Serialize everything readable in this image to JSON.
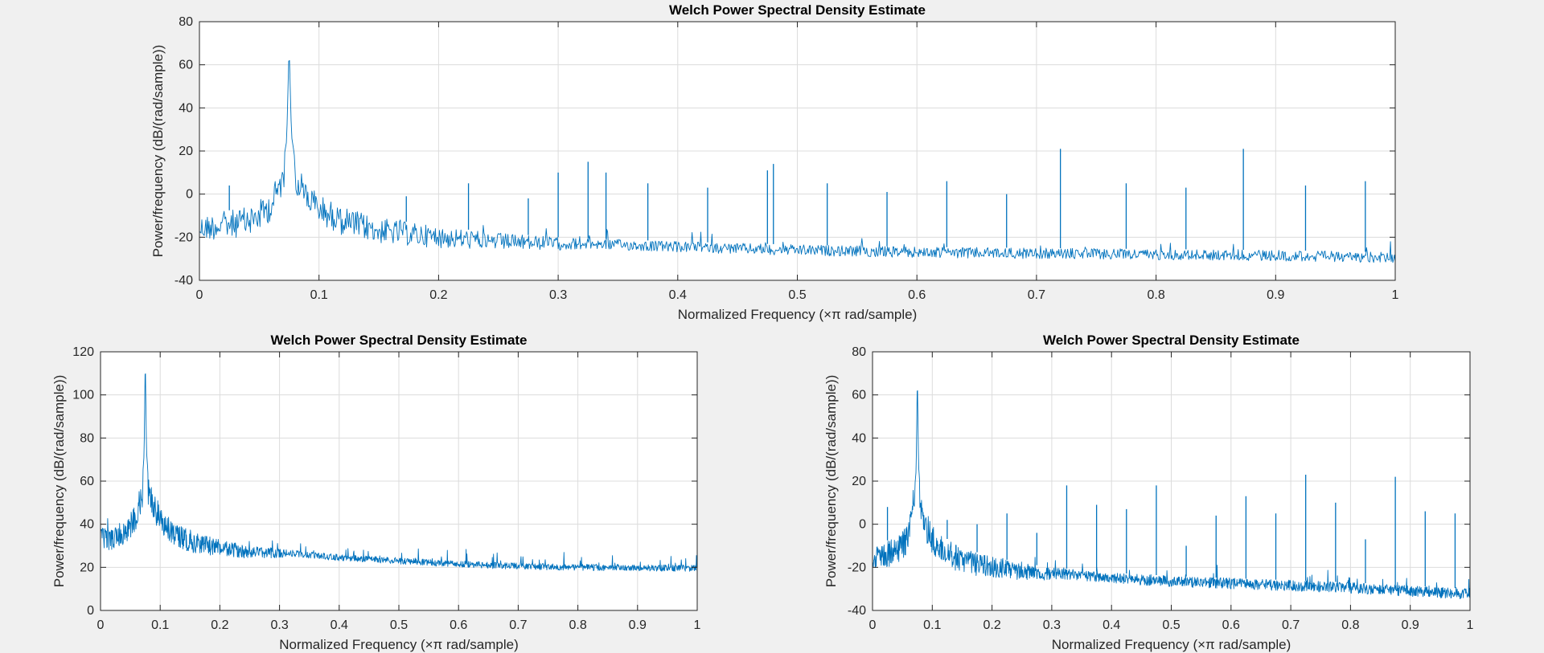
{
  "colors": {
    "background": "#f0f0f0",
    "axes_bg": "#ffffff",
    "series": "#0072bd"
  },
  "chart_data": [
    {
      "type": "line",
      "title": "Welch Power Spectral Density Estimate",
      "xlabel": "Normalized Frequency  (×π rad/sample)",
      "ylabel": "Power/frequency (dB/(rad/sample))",
      "xlim": [
        0,
        1
      ],
      "ylim": [
        -40,
        80
      ],
      "xticks": [
        0,
        0.1,
        0.2,
        0.3,
        0.4,
        0.5,
        0.6,
        0.7,
        0.8,
        0.9,
        1
      ],
      "xtick_labels": [
        "0",
        "0.1",
        "0.2",
        "0.3",
        "0.4",
        "0.5",
        "0.6",
        "0.7",
        "0.8",
        "0.9",
        "1"
      ],
      "yticks": [
        -40,
        -20,
        0,
        20,
        40,
        60,
        80
      ],
      "ytick_labels": [
        "-40",
        "-20",
        "0",
        "20",
        "40",
        "60",
        "80"
      ],
      "grid": true,
      "series": [
        {
          "x": [
            0,
            0.02,
            0.04,
            0.05,
            0.06,
            0.07,
            0.073,
            0.075,
            0.077,
            0.08,
            0.09,
            0.1,
            0.12,
            0.15,
            0.2,
            0.25,
            0.3,
            0.4,
            0.5,
            0.6,
            0.7,
            0.8,
            0.9,
            1.0
          ],
          "values": [
            -10,
            -8,
            -6,
            -3,
            2,
            15,
            25,
            69,
            27,
            16,
            6,
            0,
            -6,
            -11,
            -15,
            -18,
            -20,
            -22,
            -23.5,
            -24.5,
            -25,
            -25.5,
            -26,
            -27
          ]
        }
      ],
      "spikes": [
        {
          "x": 0.025,
          "y": 4
        },
        {
          "x": 0.173,
          "y": -1
        },
        {
          "x": 0.225,
          "y": 5
        },
        {
          "x": 0.275,
          "y": -2
        },
        {
          "x": 0.3,
          "y": 10
        },
        {
          "x": 0.325,
          "y": 15
        },
        {
          "x": 0.34,
          "y": 10
        },
        {
          "x": 0.375,
          "y": 5
        },
        {
          "x": 0.425,
          "y": 3
        },
        {
          "x": 0.475,
          "y": 11
        },
        {
          "x": 0.48,
          "y": 14
        },
        {
          "x": 0.525,
          "y": 5
        },
        {
          "x": 0.575,
          "y": 1
        },
        {
          "x": 0.625,
          "y": 6
        },
        {
          "x": 0.675,
          "y": 0
        },
        {
          "x": 0.72,
          "y": 21
        },
        {
          "x": 0.775,
          "y": 5
        },
        {
          "x": 0.825,
          "y": 3
        },
        {
          "x": 0.873,
          "y": 21
        },
        {
          "x": 0.925,
          "y": 4
        },
        {
          "x": 0.975,
          "y": 6
        }
      ]
    },
    {
      "type": "line",
      "title": "Welch Power Spectral Density Estimate",
      "xlabel": "Normalized Frequency  (×π rad/sample)",
      "ylabel": "Power/frequency (dB/(rad/sample))",
      "xlim": [
        0,
        1
      ],
      "ylim": [
        0,
        120
      ],
      "xticks": [
        0,
        0.1,
        0.2,
        0.3,
        0.4,
        0.5,
        0.6,
        0.7,
        0.8,
        0.9,
        1
      ],
      "xtick_labels": [
        "0",
        "0.1",
        "0.2",
        "0.3",
        "0.4",
        "0.5",
        "0.6",
        "0.7",
        "0.8",
        "0.9",
        "1"
      ],
      "yticks": [
        0,
        20,
        40,
        60,
        80,
        100,
        120
      ],
      "ytick_labels": [
        "0",
        "20",
        "40",
        "60",
        "80",
        "100",
        "120"
      ],
      "grid": true,
      "series": [
        {
          "x": [
            0,
            0.02,
            0.04,
            0.05,
            0.06,
            0.07,
            0.073,
            0.075,
            0.077,
            0.08,
            0.09,
            0.1,
            0.12,
            0.15,
            0.2,
            0.25,
            0.3,
            0.4,
            0.5,
            0.6,
            0.7,
            0.8,
            0.9,
            1.0
          ],
          "values": [
            38,
            39,
            42,
            45,
            50,
            60,
            72,
            117,
            74,
            62,
            54,
            48,
            42,
            37,
            33,
            30,
            28.5,
            26,
            24.5,
            23,
            22,
            21.5,
            21.3,
            21
          ]
        }
      ],
      "spikes": []
    },
    {
      "type": "line",
      "title": "Welch Power Spectral Density Estimate",
      "xlabel": "Normalized Frequency  (×π rad/sample)",
      "ylabel": "Power/frequency (dB/(rad/sample))",
      "xlim": [
        0,
        1
      ],
      "ylim": [
        -40,
        80
      ],
      "xticks": [
        0,
        0.1,
        0.2,
        0.3,
        0.4,
        0.5,
        0.6,
        0.7,
        0.8,
        0.9,
        1
      ],
      "xtick_labels": [
        "0",
        "0.1",
        "0.2",
        "0.3",
        "0.4",
        "0.5",
        "0.6",
        "0.7",
        "0.8",
        "0.9",
        "1"
      ],
      "yticks": [
        -40,
        -20,
        0,
        20,
        40,
        60,
        80
      ],
      "ytick_labels": [
        "-40",
        "-20",
        "0",
        "20",
        "40",
        "60",
        "80"
      ],
      "grid": true,
      "series": [
        {
          "x": [
            0,
            0.02,
            0.04,
            0.05,
            0.06,
            0.07,
            0.073,
            0.075,
            0.077,
            0.08,
            0.09,
            0.1,
            0.12,
            0.15,
            0.2,
            0.25,
            0.3,
            0.4,
            0.5,
            0.6,
            0.7,
            0.8,
            0.9,
            1.0
          ],
          "values": [
            -10,
            -8,
            -6,
            -3,
            2,
            15,
            25,
            69,
            27,
            16,
            6,
            0,
            -6,
            -11,
            -15,
            -18,
            -20,
            -22.5,
            -24,
            -25,
            -26,
            -27,
            -28.5,
            -30
          ]
        }
      ],
      "spikes": [
        {
          "x": 0.025,
          "y": 8
        },
        {
          "x": 0.125,
          "y": 2
        },
        {
          "x": 0.175,
          "y": 0
        },
        {
          "x": 0.225,
          "y": 5
        },
        {
          "x": 0.275,
          "y": -4
        },
        {
          "x": 0.325,
          "y": 18
        },
        {
          "x": 0.375,
          "y": 9
        },
        {
          "x": 0.425,
          "y": 7
        },
        {
          "x": 0.475,
          "y": 18
        },
        {
          "x": 0.525,
          "y": -10
        },
        {
          "x": 0.575,
          "y": 4
        },
        {
          "x": 0.625,
          "y": 13
        },
        {
          "x": 0.675,
          "y": 5
        },
        {
          "x": 0.725,
          "y": 23
        },
        {
          "x": 0.775,
          "y": 10
        },
        {
          "x": 0.825,
          "y": -7
        },
        {
          "x": 0.875,
          "y": 22
        },
        {
          "x": 0.925,
          "y": 6
        },
        {
          "x": 0.975,
          "y": 5
        }
      ]
    }
  ]
}
